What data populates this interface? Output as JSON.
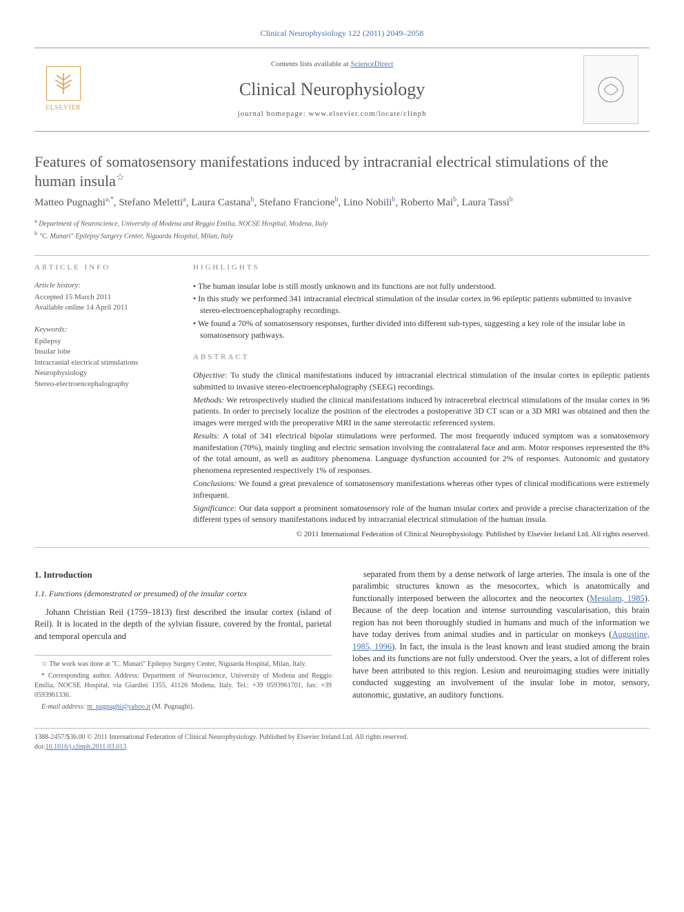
{
  "journal_ref": "Clinical Neurophysiology 122 (2011) 2049–2058",
  "banner": {
    "contents_label": "Contents lists available at ",
    "contents_link": "ScienceDirect",
    "journal_name": "Clinical Neurophysiology",
    "homepage_label": "journal homepage: ",
    "homepage_url": "www.elsevier.com/locate/clinph",
    "publisher": "ELSEVIER"
  },
  "article": {
    "title": "Features of somatosensory manifestations induced by intracranial electrical stimulations of the human insula",
    "star": "☆",
    "authors_html": "Matteo Pugnaghi<sup>a,*</sup>, Stefano Meletti<sup>a</sup>, Laura Castana<sup>b</sup>, Stefano Francione<sup>b</sup>, Lino Nobili<sup>b</sup>, Roberto Mai<sup>b</sup>, Laura Tassi<sup>b</sup>",
    "affiliations": [
      {
        "sup": "a",
        "text": "Department of Neuroscience, University of Modena and Reggio Emilia, NOCSE Hospital, Modena, Italy"
      },
      {
        "sup": "b",
        "text": "\"C. Munari\" Epilepsy Surgery Center, Niguarda Hospital, Milan, Italy"
      }
    ]
  },
  "info": {
    "label": "ARTICLE INFO",
    "history_label": "Article history:",
    "history": [
      "Accepted 15 March 2011",
      "Available online 14 April 2011"
    ],
    "keywords_label": "Keywords:",
    "keywords": [
      "Epilepsy",
      "Insular lobe",
      "Intracranial electrical stimulations",
      "Neurophysiology",
      "Stereo-electroencephalography"
    ]
  },
  "highlights": {
    "label": "HIGHLIGHTS",
    "items": [
      "The human insular lobe is still mostly unknown and its functions are not fully understood.",
      "In this study we performed 341 intracranial electrical stimulation of the insular cortex in 96 epileptic patients submitted to invasive stereo-electroencephalography recordings.",
      "We found a 70% of somatosensory responses, further divided into different sub-types, suggesting a key role of the insular lobe in somatosensory pathways."
    ]
  },
  "abstract": {
    "label": "ABSTRACT",
    "paragraphs": [
      {
        "runin": "Objective:",
        "text": " To study the clinical manifestations induced by intracranial electrical stimulation of the insular cortex in epileptic patients submitted to invasive stereo-electroencephalography (SEEG) recordings."
      },
      {
        "runin": "Methods:",
        "text": " We retrospectively studied the clinical manifestations induced by intracerebral electrical stimulations of the insular cortex in 96 patients. In order to precisely localize the position of the electrodes a postoperative 3D CT scan or a 3D MRI was obtained and then the images were merged with the preoperative MRI in the same stereotactic referenced system."
      },
      {
        "runin": "Results:",
        "text": " A total of 341 electrical bipolar stimulations were performed. The most frequently induced symptom was a somatosensory manifestation (70%), mainly tingling and electric sensation involving the contralateral face and arm. Motor responses represented the 8% of the total amount, as well as auditory phenomena. Language dysfunction accounted for 2% of responses. Autonomic and gustatory phenomena represented respectively 1% of responses."
      },
      {
        "runin": "Conclusions:",
        "text": " We found a great prevalence of somatosensory manifestations whereas other types of clinical modifications were extremely infrequent."
      },
      {
        "runin": "Significance:",
        "text": " Our data support a prominent somatosensory role of the human insular cortex and provide a precise characterization of the different types of sensory manifestations induced by intracranial electrical stimulation of the human insula."
      }
    ],
    "copyright": "© 2011 International Federation of Clinical Neurophysiology. Published by Elsevier Ireland Ltd. All rights reserved."
  },
  "body": {
    "section_num": "1. Introduction",
    "subsection": "1.1. Functions (demonstrated or presumed) of the insular cortex",
    "col1": "Johann Christian Reil (1759–1813) first described the insular cortex (island of Reil). It is located in the depth of the sylvian fissure, covered by the frontal, parietal and temporal opercula and",
    "col2_part1": "separated from them by a dense network of large arteries. The insula is one of the paralimbic structures known as the mesocortex, which is anatomically and functionally interposed between the allocortex and the neocortex (",
    "col2_ref1": "Mesulam, 1985",
    "col2_part2": "). Because of the deep location and intense surrounding vascularisation, this brain region has not been thoroughly studied in humans and much of the information we have today derives from animal studies and in particular on monkeys (",
    "col2_ref2": "Augustine, 1985, 1996",
    "col2_part3": "). In fact, the insula is the least known and least studied among the brain lobes and its functions are not fully understood. Over the years, a lot of different roles have been attributed to this region. Lesion and neuroimaging studies were initially conducted suggesting an involvement of the insular lobe in motor, sensory, autonomic, gustative, an auditory functions."
  },
  "footnotes": {
    "star": "☆ The work was done at \"C. Munari\" Epilepsy Surgery Center, Niguarda Hospital, Milan, Italy.",
    "corr": "* Corresponding author. Address: Department of Neuroscience, University of Modena and Reggio Emilia, NOCSE Hospital, via Giardini 1355, 41126 Modena, Italy. Tel.: +39 0593961701, fax: +39 0593961336.",
    "email_label": "E-mail address: ",
    "email": "m_pugnaghi@yahoo.it",
    "email_name": " (M. Pugnaghi)."
  },
  "footer": {
    "line1": "1388-2457/$36.00 © 2011 International Federation of Clinical Neurophysiology. Published by Elsevier Ireland Ltd. All rights reserved.",
    "doi_label": "doi:",
    "doi": "10.1016/j.clinph.2011.03.013"
  },
  "colors": {
    "link": "#4a72a8",
    "text": "#333333",
    "muted": "#555555",
    "elsevier": "#d89c4a"
  }
}
